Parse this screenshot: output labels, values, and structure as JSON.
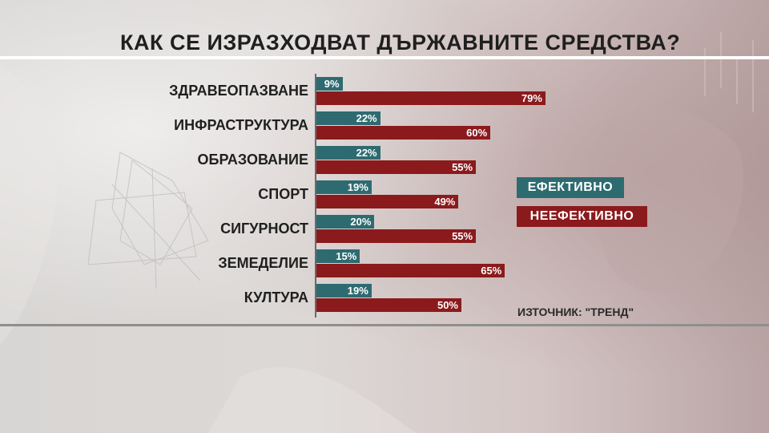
{
  "title": "КАК СЕ ИЗРАЗХОДВАТ ДЪРЖАВНИТЕ СРЕДСТВА?",
  "source": "ИЗТОЧНИК: \"ТРЕНД\"",
  "colors": {
    "effective": "#2e6b71",
    "ineffective": "#8b1a1d"
  },
  "chart_data": {
    "type": "bar",
    "orientation": "horizontal",
    "title": "КАК СЕ ИЗРАЗХОДВАТ ДЪРЖАВНИТЕ СРЕДСТВА?",
    "categories": [
      "ЗДРАВЕОПАЗВАНЕ",
      "ИНФРАСТРУКТУРА",
      "ОБРАЗОВАНИЕ",
      "СПОРТ",
      "СИГУРНОСТ",
      "ЗЕМЕДЕЛИЕ",
      "КУЛТУРА"
    ],
    "series": [
      {
        "name": "ЕФЕКТИВНО",
        "color": "#2e6b71",
        "values": [
          9,
          22,
          22,
          19,
          20,
          15,
          19
        ]
      },
      {
        "name": "НЕЕФЕКТИВНО",
        "color": "#8b1a1d",
        "values": [
          79,
          60,
          55,
          49,
          55,
          65,
          50
        ]
      }
    ],
    "value_suffix": "%",
    "legend_position": "right",
    "grid": false
  }
}
